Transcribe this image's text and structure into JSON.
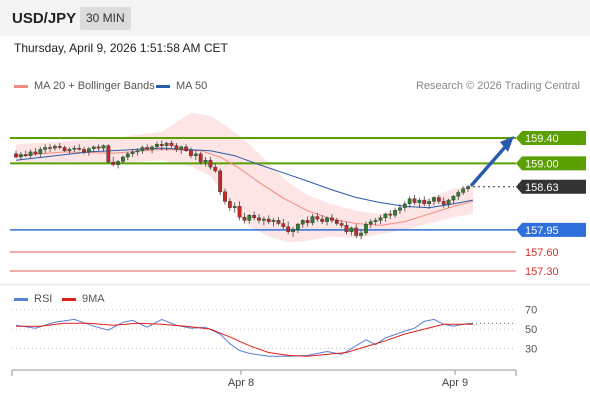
{
  "header": {
    "symbol": "USD/JPY",
    "timeframe": "30 MIN"
  },
  "timestamp": "Thursday, April 9, 2026 1:51:58 AM CET",
  "legend": {
    "ma20": {
      "label": "MA 20 + Bollinger Bands",
      "color": "#f28b82"
    },
    "ma50": {
      "label": "MA 50",
      "color": "#2a5caa"
    }
  },
  "credit": "Research © 2026 Trading Central",
  "rsi_legend": {
    "rsi": {
      "label": "RSI",
      "color": "#5b7fd6"
    },
    "ma9": {
      "label": "9MA",
      "color": "#e0201b"
    }
  },
  "colors": {
    "up": "#2e7d32",
    "down": "#c62828",
    "resistance": "#5aa000",
    "support": "#2f6fdb",
    "weak": "#e05a5a",
    "last": "#333333",
    "bb_fill": "#fde0e0",
    "arrow": "#2a5caa"
  },
  "chart_data": [
    {
      "type": "candlestick",
      "title": "USD/JPY",
      "ylim": [
        157.0,
        160.0
      ],
      "x_ticks": [
        "Apr 8",
        "Apr 9"
      ],
      "candles": [
        [
          159.15,
          159.2,
          159.08,
          159.1
        ],
        [
          159.1,
          159.18,
          159.05,
          159.14
        ],
        [
          159.14,
          159.2,
          159.1,
          159.12
        ],
        [
          159.12,
          159.22,
          159.08,
          159.18
        ],
        [
          159.18,
          159.24,
          159.12,
          159.15
        ],
        [
          159.15,
          159.26,
          159.1,
          159.22
        ],
        [
          159.22,
          159.3,
          159.16,
          159.25
        ],
        [
          159.25,
          159.3,
          159.18,
          159.24
        ],
        [
          159.24,
          159.3,
          159.2,
          159.27
        ],
        [
          159.27,
          159.32,
          159.22,
          159.25
        ],
        [
          159.25,
          159.28,
          159.18,
          159.2
        ],
        [
          159.2,
          159.25,
          159.15,
          159.22
        ],
        [
          159.22,
          159.28,
          159.18,
          159.24
        ],
        [
          159.24,
          159.3,
          159.2,
          159.22
        ],
        [
          159.22,
          159.26,
          159.14,
          159.18
        ],
        [
          159.18,
          159.26,
          159.12,
          159.23
        ],
        [
          159.23,
          159.28,
          159.18,
          159.26
        ],
        [
          159.26,
          159.3,
          159.2,
          159.24
        ],
        [
          159.24,
          159.3,
          159.18,
          159.28
        ],
        [
          159.28,
          159.3,
          159.0,
          159.02
        ],
        [
          159.02,
          159.1,
          158.95,
          158.98
        ],
        [
          158.98,
          159.05,
          158.92,
          159.03
        ],
        [
          159.03,
          159.12,
          159.0,
          159.1
        ],
        [
          159.1,
          159.18,
          159.05,
          159.15
        ],
        [
          159.15,
          159.22,
          159.1,
          159.18
        ],
        [
          159.18,
          159.24,
          159.12,
          159.2
        ],
        [
          159.2,
          159.28,
          159.15,
          159.25
        ],
        [
          159.25,
          159.3,
          159.2,
          159.22
        ],
        [
          159.22,
          159.28,
          159.16,
          159.26
        ],
        [
          159.26,
          159.34,
          159.22,
          159.3
        ],
        [
          159.3,
          159.36,
          159.2,
          159.28
        ],
        [
          159.28,
          159.34,
          159.2,
          159.32
        ],
        [
          159.32,
          159.36,
          159.24,
          159.28
        ],
        [
          159.28,
          159.32,
          159.18,
          159.22
        ],
        [
          159.22,
          159.28,
          159.15,
          159.26
        ],
        [
          159.26,
          159.3,
          159.18,
          159.2
        ],
        [
          159.2,
          159.25,
          159.08,
          159.12
        ],
        [
          159.12,
          159.2,
          159.05,
          159.15
        ],
        [
          159.15,
          159.18,
          158.98,
          159.02
        ],
        [
          159.02,
          159.1,
          158.95,
          159.05
        ],
        [
          159.05,
          159.1,
          158.9,
          158.94
        ],
        [
          158.94,
          159.0,
          158.85,
          158.88
        ],
        [
          158.88,
          158.92,
          158.5,
          158.55
        ],
        [
          158.55,
          158.6,
          158.35,
          158.4
        ],
        [
          158.4,
          158.45,
          158.25,
          158.3
        ],
        [
          158.3,
          158.38,
          158.22,
          158.32
        ],
        [
          158.32,
          158.4,
          158.1,
          158.15
        ],
        [
          158.15,
          158.22,
          158.05,
          158.1
        ],
        [
          158.1,
          158.2,
          158.05,
          158.18
        ],
        [
          158.18,
          158.24,
          158.1,
          158.14
        ],
        [
          158.14,
          158.2,
          158.05,
          158.1
        ],
        [
          158.1,
          158.16,
          158.02,
          158.12
        ],
        [
          158.12,
          158.18,
          158.04,
          158.08
        ],
        [
          158.08,
          158.14,
          158.0,
          158.1
        ],
        [
          158.1,
          158.15,
          158.02,
          158.05
        ],
        [
          158.05,
          158.12,
          157.96,
          158.0
        ],
        [
          158.0,
          158.08,
          157.88,
          157.92
        ],
        [
          157.92,
          158.0,
          157.84,
          157.96
        ],
        [
          157.96,
          158.06,
          157.9,
          158.04
        ],
        [
          158.04,
          158.12,
          157.98,
          158.1
        ],
        [
          158.1,
          158.16,
          158.0,
          158.06
        ],
        [
          158.06,
          158.2,
          158.02,
          158.16
        ],
        [
          158.16,
          158.22,
          158.08,
          158.12
        ],
        [
          158.12,
          158.18,
          158.04,
          158.08
        ],
        [
          158.08,
          158.16,
          158.02,
          158.14
        ],
        [
          158.14,
          158.2,
          158.06,
          158.1
        ],
        [
          158.1,
          158.14,
          158.02,
          158.05
        ],
        [
          158.05,
          158.1,
          157.98,
          158.02
        ],
        [
          158.02,
          158.08,
          157.88,
          157.92
        ],
        [
          157.92,
          158.0,
          157.86,
          157.98
        ],
        [
          157.98,
          158.04,
          157.82,
          157.86
        ],
        [
          157.86,
          157.96,
          157.8,
          157.9
        ],
        [
          157.9,
          158.08,
          157.86,
          158.04
        ],
        [
          158.04,
          158.12,
          157.98,
          158.08
        ],
        [
          158.08,
          158.14,
          158.02,
          158.1
        ],
        [
          158.1,
          158.18,
          158.04,
          158.14
        ],
        [
          158.14,
          158.22,
          158.08,
          158.2
        ],
        [
          158.2,
          158.26,
          158.12,
          158.18
        ],
        [
          158.18,
          158.3,
          158.14,
          158.26
        ],
        [
          158.26,
          158.36,
          158.2,
          158.3
        ],
        [
          158.3,
          158.4,
          158.24,
          158.36
        ],
        [
          158.36,
          158.48,
          158.3,
          158.44
        ],
        [
          158.44,
          158.5,
          158.34,
          158.38
        ],
        [
          158.38,
          158.46,
          158.3,
          158.42
        ],
        [
          158.42,
          158.48,
          158.32,
          158.36
        ],
        [
          158.36,
          158.44,
          158.28,
          158.4
        ],
        [
          158.4,
          158.48,
          158.34,
          158.46
        ],
        [
          158.46,
          158.5,
          158.36,
          158.4
        ],
        [
          158.4,
          158.46,
          158.3,
          158.35
        ],
        [
          158.35,
          158.44,
          158.3,
          158.42
        ],
        [
          158.42,
          158.5,
          158.36,
          158.48
        ],
        [
          158.48,
          158.58,
          158.42,
          158.54
        ],
        [
          158.54,
          158.64,
          158.5,
          158.6
        ],
        [
          158.6,
          158.66,
          158.55,
          158.63
        ]
      ],
      "ma50": [
        [
          0,
          159.05
        ],
        [
          15,
          159.18
        ],
        [
          30,
          159.24
        ],
        [
          40,
          159.2
        ],
        [
          45,
          159.12
        ],
        [
          50,
          158.98
        ],
        [
          55,
          158.85
        ],
        [
          60,
          158.72
        ],
        [
          65,
          158.58
        ],
        [
          70,
          158.46
        ],
        [
          75,
          158.38
        ],
        [
          80,
          158.32
        ],
        [
          85,
          158.3
        ],
        [
          90,
          158.36
        ],
        [
          94,
          158.42
        ]
      ],
      "ma20": [
        [
          0,
          159.12
        ],
        [
          10,
          159.18
        ],
        [
          20,
          159.16
        ],
        [
          30,
          159.22
        ],
        [
          38,
          159.2
        ],
        [
          42,
          159.1
        ],
        [
          46,
          158.92
        ],
        [
          50,
          158.7
        ],
        [
          55,
          158.45
        ],
        [
          60,
          158.25
        ],
        [
          65,
          158.12
        ],
        [
          70,
          158.05
        ],
        [
          75,
          158.02
        ],
        [
          80,
          158.08
        ],
        [
          85,
          158.2
        ],
        [
          90,
          158.32
        ],
        [
          94,
          158.4
        ]
      ],
      "bb_upper": [
        [
          0,
          159.3
        ],
        [
          10,
          159.35
        ],
        [
          20,
          159.4
        ],
        [
          30,
          159.5
        ],
        [
          36,
          159.8
        ],
        [
          40,
          159.75
        ],
        [
          44,
          159.55
        ],
        [
          48,
          159.3
        ],
        [
          52,
          159.0
        ],
        [
          56,
          158.7
        ],
        [
          60,
          158.5
        ],
        [
          65,
          158.35
        ],
        [
          70,
          158.25
        ],
        [
          75,
          158.2
        ],
        [
          80,
          158.3
        ],
        [
          85,
          158.45
        ],
        [
          90,
          158.6
        ],
        [
          94,
          158.65
        ]
      ],
      "bb_lower": [
        [
          0,
          159.0
        ],
        [
          10,
          159.02
        ],
        [
          20,
          159.0
        ],
        [
          30,
          159.05
        ],
        [
          36,
          158.95
        ],
        [
          40,
          158.8
        ],
        [
          44,
          158.4
        ],
        [
          48,
          158.0
        ],
        [
          52,
          157.85
        ],
        [
          56,
          157.75
        ],
        [
          60,
          157.78
        ],
        [
          65,
          157.85
        ],
        [
          70,
          157.82
        ],
        [
          75,
          157.88
        ],
        [
          80,
          157.95
        ],
        [
          85,
          158.05
        ],
        [
          90,
          158.15
        ],
        [
          94,
          158.2
        ]
      ],
      "levels": [
        {
          "label": "159.40",
          "value": 159.4,
          "kind": "resistance"
        },
        {
          "label": "159.00",
          "value": 159.0,
          "kind": "resistance"
        },
        {
          "label": "158.63",
          "value": 158.63,
          "kind": "last"
        },
        {
          "label": "157.95",
          "value": 157.95,
          "kind": "support"
        },
        {
          "label": "157.60",
          "value": 157.6,
          "kind": "weak"
        },
        {
          "label": "157.30",
          "value": 157.3,
          "kind": "weak"
        }
      ]
    },
    {
      "type": "line",
      "title": "RSI",
      "ylim": [
        10,
        80
      ],
      "y_ticks": [
        "70",
        "50",
        "30"
      ],
      "rsi": [
        [
          0,
          54
        ],
        [
          4,
          51
        ],
        [
          8,
          57
        ],
        [
          12,
          60
        ],
        [
          16,
          53
        ],
        [
          19,
          49
        ],
        [
          22,
          57
        ],
        [
          24,
          59
        ],
        [
          27,
          52
        ],
        [
          30,
          60
        ],
        [
          33,
          54
        ],
        [
          36,
          51
        ],
        [
          39,
          52
        ],
        [
          42,
          45
        ],
        [
          44,
          35
        ],
        [
          46,
          28
        ],
        [
          48,
          25
        ],
        [
          52,
          22
        ],
        [
          56,
          22
        ],
        [
          60,
          23
        ],
        [
          64,
          27
        ],
        [
          67,
          24
        ],
        [
          70,
          33
        ],
        [
          72,
          39
        ],
        [
          74,
          34
        ],
        [
          76,
          41
        ],
        [
          80,
          48
        ],
        [
          82,
          51
        ],
        [
          84,
          58
        ],
        [
          86,
          60
        ],
        [
          88,
          55
        ],
        [
          90,
          53
        ],
        [
          92,
          55
        ],
        [
          94,
          56
        ]
      ],
      "ma9": [
        [
          0,
          53
        ],
        [
          5,
          53
        ],
        [
          10,
          56
        ],
        [
          15,
          56
        ],
        [
          20,
          54
        ],
        [
          25,
          56
        ],
        [
          30,
          55
        ],
        [
          35,
          53
        ],
        [
          40,
          50
        ],
        [
          44,
          42
        ],
        [
          48,
          33
        ],
        [
          52,
          26
        ],
        [
          56,
          23
        ],
        [
          60,
          22
        ],
        [
          64,
          24
        ],
        [
          68,
          26
        ],
        [
          72,
          32
        ],
        [
          76,
          38
        ],
        [
          80,
          45
        ],
        [
          84,
          50
        ],
        [
          88,
          55
        ],
        [
          92,
          55
        ],
        [
          94,
          55
        ]
      ]
    }
  ]
}
